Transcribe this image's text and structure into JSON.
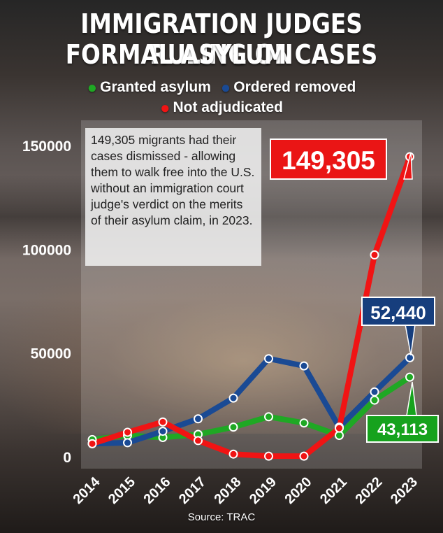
{
  "title": {
    "line1": "IMMIGRATION JUDGES RULING ON",
    "line2": "FORMAL ASYLUM CASES"
  },
  "legend": [
    {
      "label": "Granted asylum",
      "color": "#1fa824"
    },
    {
      "label": "Ordered removed",
      "color": "#1a4a94"
    },
    {
      "label": "Not adjudicated",
      "color": "#f01414"
    }
  ],
  "annotation": "149,305 migrants had their cases dismissed - allowing them to walk free into the U.S. without an immigration court judge's verdict on the merits of their asylum claim, in 2023.",
  "callouts": {
    "not_adjudicated": "149,305",
    "ordered_removed": "52,440",
    "granted": "43,113"
  },
  "source": "Source: TRAC",
  "chart_data": {
    "type": "line",
    "x": [
      "2014",
      "2015",
      "2016",
      "2017",
      "2018",
      "2019",
      "2020",
      "2021",
      "2022",
      "2023"
    ],
    "ylim": [
      0,
      150000
    ],
    "yticks": [
      "0",
      "50000",
      "100000",
      "150000"
    ],
    "grid": false,
    "series": [
      {
        "name": "Granted asylum",
        "color": "#1fa824",
        "values": [
          13000,
          15000,
          14000,
          15500,
          19000,
          24000,
          21000,
          15000,
          32000,
          43113
        ]
      },
      {
        "name": "Ordered removed",
        "color": "#1a4a94",
        "values": [
          11000,
          11500,
          17000,
          23000,
          33000,
          52000,
          48500,
          19000,
          36000,
          52440
        ]
      },
      {
        "name": "Not adjudicated",
        "color": "#f01414",
        "values": [
          11000,
          16500,
          21500,
          12500,
          6000,
          5000,
          5000,
          18500,
          102000,
          149305
        ]
      }
    ]
  }
}
